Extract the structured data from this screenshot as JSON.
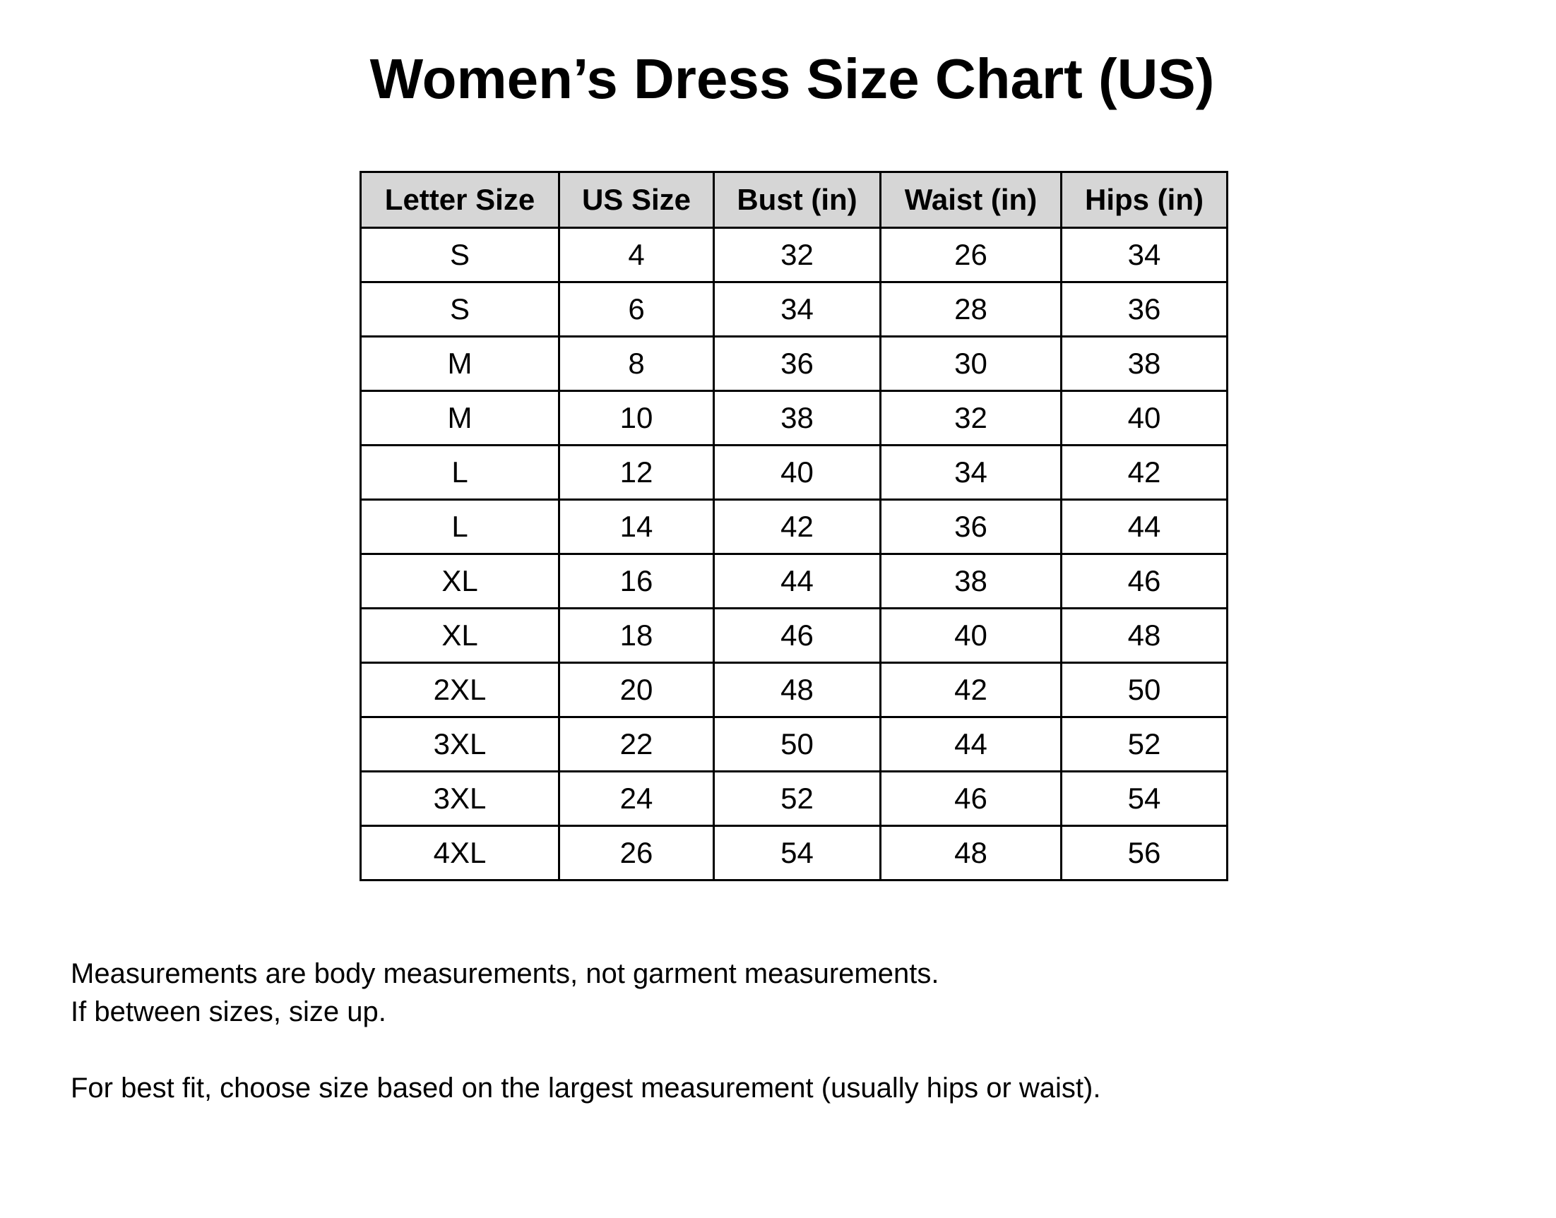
{
  "title": "Women’s Dress Size Chart (US)",
  "table": {
    "headers": [
      "Letter Size",
      "US Size",
      "Bust (in)",
      "Waist (in)",
      "Hips (in)"
    ],
    "rows": [
      [
        "S",
        "4",
        "32",
        "26",
        "34"
      ],
      [
        "S",
        "6",
        "34",
        "28",
        "36"
      ],
      [
        "M",
        "8",
        "36",
        "30",
        "38"
      ],
      [
        "M",
        "10",
        "38",
        "32",
        "40"
      ],
      [
        "L",
        "12",
        "40",
        "34",
        "42"
      ],
      [
        "L",
        "14",
        "42",
        "36",
        "44"
      ],
      [
        "XL",
        "16",
        "44",
        "38",
        "46"
      ],
      [
        "XL",
        "18",
        "46",
        "40",
        "48"
      ],
      [
        "2XL",
        "20",
        "48",
        "42",
        "50"
      ],
      [
        "3XL",
        "22",
        "50",
        "44",
        "52"
      ],
      [
        "3XL",
        "24",
        "52",
        "46",
        "54"
      ],
      [
        "4XL",
        "26",
        "54",
        "48",
        "56"
      ]
    ]
  },
  "notes": {
    "line1": "Measurements are body measurements, not garment measurements.",
    "line2": "If between sizes, size up.",
    "line3": "For best fit, choose size based on the largest measurement (usually hips or waist)."
  },
  "colors": {
    "header_bg": "#d6d6d6",
    "border": "#000000"
  }
}
